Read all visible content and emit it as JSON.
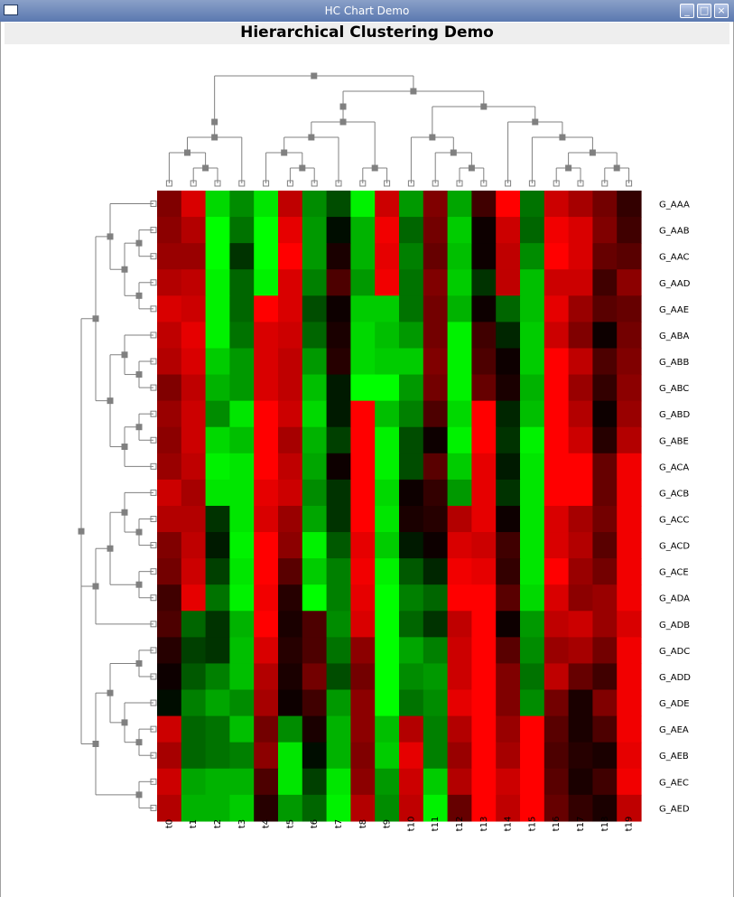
{
  "window": {
    "title": "HC Chart Demo"
  },
  "chart_data": {
    "type": "heatmap",
    "title": "Hierarchical Clustering Demo",
    "columns": [
      "t0",
      "t1",
      "t2",
      "t3",
      "t4",
      "t5",
      "t6",
      "t7",
      "t8",
      "t9",
      "t10",
      "t11",
      "t12",
      "t13",
      "t14",
      "t15",
      "t16",
      "t17",
      "t18",
      "t19"
    ],
    "rows": [
      "G_AAA",
      "G_AAB",
      "G_AAC",
      "G_AAD",
      "G_AAE",
      "G_ABA",
      "G_ABB",
      "G_ABC",
      "G_ABD",
      "G_ABE",
      "G_ACA",
      "G_ACB",
      "G_ACC",
      "G_ACD",
      "G_ACE",
      "G_ADA",
      "G_ADB",
      "G_ADC",
      "G_ADD",
      "G_ADE",
      "G_AEA",
      "G_AEB",
      "G_AEC",
      "G_AED"
    ],
    "color_scale": {
      "low": "#00ff00",
      "mid": "#000000",
      "high": "#ff0000",
      "range": [
        -1,
        1
      ]
    },
    "values": [
      [
        0.5,
        0.85,
        -0.85,
        -0.55,
        -0.9,
        0.75,
        -0.55,
        -0.3,
        -0.95,
        0.8,
        -0.6,
        0.5,
        -0.65,
        0.25,
        1,
        -0.45,
        0.8,
        0.65,
        0.45,
        0.2
      ],
      [
        0.55,
        0.7,
        -1,
        -0.45,
        -1,
        0.9,
        -0.6,
        -0.05,
        -0.7,
        0.95,
        -0.4,
        0.45,
        -0.8,
        0.05,
        0.8,
        -0.4,
        0.95,
        0.85,
        0.5,
        0.25
      ],
      [
        0.6,
        0.6,
        -1,
        -0.2,
        -1,
        1,
        -0.6,
        0.1,
        -0.7,
        0.9,
        -0.5,
        0.4,
        -0.75,
        0.05,
        0.75,
        -0.55,
        1,
        0.85,
        0.4,
        0.35
      ],
      [
        0.7,
        0.75,
        -0.95,
        -0.4,
        -0.95,
        0.85,
        -0.5,
        0.3,
        -0.6,
        0.95,
        -0.45,
        0.5,
        -0.8,
        -0.2,
        0.75,
        -0.75,
        0.8,
        0.8,
        0.25,
        0.55
      ],
      [
        0.85,
        0.8,
        -0.95,
        -0.4,
        1,
        0.85,
        -0.3,
        0.05,
        -0.8,
        -0.8,
        -0.45,
        0.45,
        -0.7,
        0.05,
        -0.4,
        -0.75,
        0.9,
        0.6,
        0.35,
        0.4
      ],
      [
        0.75,
        0.9,
        -0.95,
        -0.45,
        0.85,
        0.8,
        -0.4,
        0.1,
        -0.85,
        -0.75,
        -0.6,
        0.45,
        -0.95,
        0.25,
        -0.15,
        -0.8,
        0.8,
        0.5,
        0.05,
        0.45
      ],
      [
        0.7,
        0.85,
        -0.8,
        -0.6,
        0.85,
        0.75,
        -0.6,
        0.15,
        -0.85,
        -0.8,
        -0.8,
        0.5,
        -0.95,
        0.3,
        0.05,
        -0.8,
        1,
        0.75,
        0.3,
        0.5
      ],
      [
        0.5,
        0.75,
        -0.7,
        -0.6,
        0.85,
        0.75,
        -0.75,
        -0.1,
        -1,
        -1,
        -0.6,
        0.45,
        -0.95,
        0.4,
        0.1,
        -0.7,
        1,
        0.6,
        0.2,
        0.55
      ],
      [
        0.6,
        0.8,
        -0.55,
        -0.9,
        1,
        0.8,
        -0.85,
        -0.1,
        1,
        -0.75,
        -0.5,
        0.3,
        -0.85,
        1,
        -0.15,
        -0.75,
        1,
        0.7,
        0.05,
        0.6
      ],
      [
        0.55,
        0.8,
        -0.85,
        -0.75,
        1,
        0.65,
        -0.7,
        -0.25,
        1,
        -0.95,
        -0.3,
        0.05,
        -0.95,
        1,
        -0.2,
        -0.95,
        1,
        0.8,
        0.15,
        0.7
      ],
      [
        0.6,
        0.75,
        -0.95,
        -0.9,
        1,
        0.75,
        -0.65,
        0.05,
        1,
        -0.95,
        -0.3,
        0.35,
        -0.8,
        0.9,
        -0.1,
        -0.9,
        1,
        1,
        0.4,
        0.95
      ],
      [
        0.8,
        0.65,
        -0.9,
        -0.9,
        0.9,
        0.8,
        -0.55,
        -0.2,
        1,
        -0.85,
        0.05,
        0.2,
        -0.6,
        0.9,
        -0.2,
        -0.9,
        1,
        1,
        0.4,
        0.95
      ],
      [
        0.7,
        0.7,
        -0.2,
        -0.9,
        0.85,
        0.6,
        -0.65,
        -0.2,
        1,
        -0.9,
        0.1,
        0.15,
        0.7,
        0.9,
        0.05,
        -0.9,
        0.85,
        0.65,
        0.45,
        0.95
      ],
      [
        0.5,
        0.75,
        -0.1,
        -0.95,
        1,
        0.55,
        -0.95,
        -0.35,
        0.9,
        -0.8,
        -0.1,
        0.05,
        0.85,
        0.8,
        0.25,
        -0.9,
        0.85,
        0.7,
        0.35,
        0.95
      ],
      [
        0.45,
        0.8,
        -0.25,
        -0.9,
        1,
        0.35,
        -0.8,
        -0.5,
        0.95,
        -0.95,
        -0.35,
        -0.15,
        0.95,
        0.9,
        0.2,
        -0.9,
        1,
        0.6,
        0.45,
        0.95
      ],
      [
        0.25,
        0.9,
        -0.45,
        -0.95,
        0.95,
        0.15,
        -1,
        -0.5,
        0.9,
        -1,
        -0.5,
        -0.4,
        1,
        1,
        0.35,
        -0.85,
        0.85,
        0.55,
        0.6,
        0.95
      ],
      [
        0.3,
        -0.4,
        -0.2,
        -0.7,
        1,
        0.1,
        0.3,
        -0.55,
        0.85,
        -1,
        -0.4,
        -0.2,
        0.75,
        1,
        0.05,
        -0.6,
        0.75,
        0.8,
        0.6,
        0.85
      ],
      [
        0.15,
        -0.25,
        -0.2,
        -0.75,
        0.85,
        0.15,
        0.3,
        -0.45,
        0.55,
        -1,
        -0.65,
        -0.5,
        0.8,
        1,
        0.35,
        -0.55,
        0.6,
        0.65,
        0.45,
        0.95
      ],
      [
        0.05,
        -0.35,
        -0.5,
        -0.75,
        0.7,
        0.1,
        0.45,
        -0.3,
        0.45,
        -1,
        -0.55,
        -0.6,
        0.8,
        1,
        0.5,
        -0.45,
        0.75,
        0.4,
        0.25,
        0.95
      ],
      [
        -0.05,
        -0.5,
        -0.65,
        -0.55,
        0.65,
        0.05,
        0.25,
        -0.6,
        0.55,
        -1,
        -0.45,
        -0.55,
        0.9,
        1,
        0.5,
        -0.55,
        0.45,
        0.1,
        0.5,
        0.95
      ],
      [
        0.8,
        -0.4,
        -0.45,
        -0.75,
        0.45,
        -0.55,
        0.1,
        -0.7,
        0.55,
        -0.75,
        0.7,
        -0.5,
        0.7,
        1,
        0.6,
        1,
        0.35,
        0.1,
        0.3,
        0.95
      ],
      [
        0.65,
        -0.4,
        -0.45,
        -0.5,
        0.55,
        -0.9,
        -0.05,
        -0.7,
        0.5,
        -0.8,
        0.9,
        -0.5,
        0.6,
        1,
        0.65,
        1,
        0.3,
        0.15,
        0.1,
        0.9
      ],
      [
        0.8,
        -0.65,
        -0.7,
        -0.7,
        0.3,
        -0.9,
        -0.25,
        -0.9,
        0.55,
        -0.6,
        0.8,
        -0.8,
        0.7,
        1,
        0.8,
        1,
        0.35,
        0.1,
        0.25,
        0.95
      ],
      [
        0.7,
        -0.7,
        -0.7,
        -0.8,
        0.15,
        -0.6,
        -0.4,
        -0.95,
        0.7,
        -0.55,
        0.75,
        -0.95,
        0.4,
        1,
        0.75,
        1,
        0.4,
        0.2,
        0.1,
        0.75
      ]
    ]
  }
}
